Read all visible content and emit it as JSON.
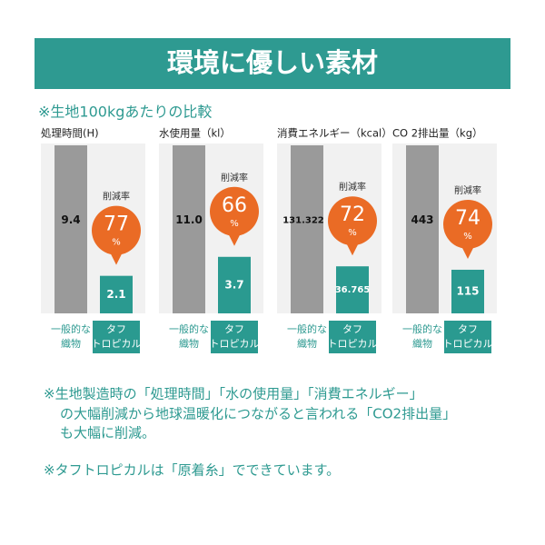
{
  "header": {
    "title": "環境に優しい素材",
    "subtitle": "※生地100kgあたりの比較"
  },
  "chart_data": [
    {
      "type": "bar",
      "title": "処理時間(H)",
      "categories": [
        [
          "一般的な",
          "織物"
        ],
        [
          "タフ",
          "トロピカル"
        ]
      ],
      "values": [
        9.4,
        2.1
      ],
      "value_labels": [
        "9.4",
        "2.1"
      ],
      "colors": [
        "#9a9a9a",
        "#2a9a90"
      ],
      "reduction": {
        "label": "削減率",
        "value": 77,
        "unit": "%"
      }
    },
    {
      "type": "bar",
      "title": "水使用量（kl）",
      "categories": [
        [
          "一般的な",
          "織物"
        ],
        [
          "タフ",
          "トロピカル"
        ]
      ],
      "values": [
        11.0,
        3.7
      ],
      "value_labels": [
        "11.0",
        "3.7"
      ],
      "colors": [
        "#9a9a9a",
        "#2a9a90"
      ],
      "reduction": {
        "label": "削減率",
        "value": 66,
        "unit": "%"
      }
    },
    {
      "type": "bar",
      "title": "消費エネルギー（kcal）",
      "categories": [
        [
          "一般的な",
          "織物"
        ],
        [
          "タフ",
          "トロピカル"
        ]
      ],
      "values": [
        131.322,
        36.765
      ],
      "value_labels": [
        "131.322",
        "36.765"
      ],
      "colors": [
        "#9a9a9a",
        "#2a9a90"
      ],
      "reduction": {
        "label": "削減率",
        "value": 72,
        "unit": "%"
      }
    },
    {
      "type": "bar",
      "title": "CO 2排出量（kg）",
      "categories": [
        [
          "一般的な",
          "織物"
        ],
        [
          "タフ",
          "トロピカル"
        ]
      ],
      "values": [
        443,
        115
      ],
      "value_labels": [
        "443",
        "115"
      ],
      "colors": [
        "#9a9a9a",
        "#2a9a90"
      ],
      "reduction": {
        "label": "削減率",
        "value": 74,
        "unit": "%"
      }
    }
  ],
  "notes": [
    [
      "※生地製造時の「処理時間」「水の使用量」「消費エネルギー」",
      "の大幅削減から地球温暖化につながると言われる「CO2排出量」",
      "も大幅に削減。"
    ],
    [
      "※タフトロピカルは「原着糸」でできています。"
    ]
  ]
}
